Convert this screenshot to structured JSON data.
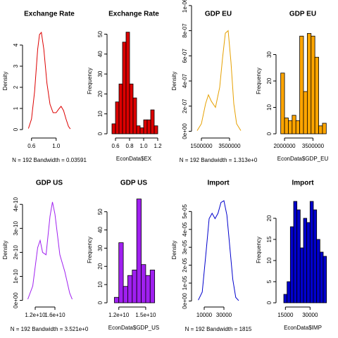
{
  "chart_data": [
    {
      "type": "line",
      "title": "Exchange Rate",
      "ylabel": "Density",
      "xlabel": "N = 192   Bandwidth = 0.03591",
      "color": "#dd0000",
      "x": [
        0.55,
        0.6,
        0.65,
        0.7,
        0.73,
        0.76,
        0.8,
        0.85,
        0.9,
        0.95,
        1.0,
        1.05,
        1.08,
        1.12,
        1.16,
        1.2,
        1.23
      ],
      "values": [
        0.05,
        0.5,
        1.8,
        3.8,
        4.5,
        4.6,
        3.8,
        2.2,
        1.2,
        0.8,
        0.8,
        1.0,
        1.1,
        0.9,
        0.5,
        0.15,
        0.03
      ],
      "xlim": [
        0.5,
        1.3
      ],
      "xticks": [
        0.6,
        {
          "value": 1,
          "label": "1.0"
        }
      ],
      "ylim": [
        -0.2,
        4.8
      ],
      "yticks": [
        0,
        1,
        2,
        3,
        4
      ]
    },
    {
      "type": "histogram",
      "title": "Exchange Rate",
      "ylabel": "Frequency",
      "xlabel": "EconData$EX",
      "color": "#dd0000",
      "bins": [
        0.55,
        0.6,
        0.65,
        0.7,
        0.75,
        0.8,
        0.85,
        0.9,
        0.95,
        1.0,
        1.05,
        1.1,
        1.15,
        1.2
      ],
      "values": [
        5,
        16,
        25,
        46,
        51,
        25,
        18,
        4,
        3,
        7,
        7,
        12,
        4
      ],
      "xlim": [
        0.52,
        1.22
      ],
      "xticks": [
        0.6,
        0.8,
        {
          "value": 1,
          "label": "1.0"
        },
        1.2
      ],
      "ylim": [
        0,
        53
      ],
      "yticks": [
        0,
        10,
        20,
        30,
        40,
        50
      ]
    },
    {
      "type": "line",
      "title": "GDP EU",
      "ylabel": "Density",
      "xlabel": "N = 192   Bandwidth = 1.313e+0",
      "color": "#e6a000",
      "x": [
        1200000,
        1500000,
        1800000,
        2000000,
        2200000,
        2500000,
        2800000,
        3000000,
        3200000,
        3400000,
        3600000,
        3800000,
        4000000,
        4300000
      ],
      "values": [
        5e-09,
        6e-08,
        2.2e-07,
        2.9e-07,
        2.4e-07,
        1.9e-07,
        3.5e-07,
        5.8e-07,
        7.8e-07,
        8e-07,
        5.5e-07,
        2.2e-07,
        6e-08,
        5e-09
      ],
      "xlim": [
        1000000,
        4500000
      ],
      "xticks": [
        1500000,
        3500000
      ],
      "ylim": [
        -2e-08,
        8.2e-07
      ],
      "yticks": [
        {
          "value": 0,
          "label": "0e+00"
        },
        {
          "value": 2e-07,
          "label": "2e-07"
        },
        {
          "value": 4e-07,
          "label": "4e-07"
        },
        {
          "value": 6e-07,
          "label": "6e-07"
        },
        {
          "value": 8e-07,
          "label": "8e-07"
        },
        {
          "value": 1e-06,
          "label": "1e-06"
        }
      ]
    },
    {
      "type": "histogram",
      "title": "GDP EU",
      "ylabel": "Frequency",
      "xlabel": "EconData$GDP_EU",
      "color": "#ffa500",
      "bins": [
        1800000,
        2000000,
        2200000,
        2400000,
        2600000,
        2800000,
        3000000,
        3200000,
        3400000,
        3600000,
        3800000,
        4000000,
        4200000
      ],
      "values": [
        23,
        6,
        5,
        7,
        5,
        37,
        16,
        38,
        37,
        29,
        3,
        4
      ],
      "xlim": [
        1700000,
        4300000
      ],
      "xticks": [
        2000000,
        3500000
      ],
      "ylim": [
        0,
        40
      ],
      "yticks": [
        0,
        10,
        20,
        30
      ]
    },
    {
      "type": "line",
      "title": "GDP US",
      "ylabel": "Density",
      "xlabel": "N = 192   Bandwidth = 3.521e+0",
      "color": "#a020f0",
      "x": [
        10500000000.0,
        11500000000.0,
        12500000000.0,
        13000000000.0,
        13500000000.0,
        14200000000.0,
        15000000000.0,
        15500000000.0,
        16000000000.0,
        17000000000.0,
        18000000000.0,
        19000000000.0,
        19500000000.0
      ],
      "values": [
        5e-12,
        6e-11,
        2.2e-10,
        2.5e-10,
        2e-10,
        1.9e-10,
        3.5e-10,
        4.1e-10,
        3.6e-10,
        1.9e-10,
        1.2e-10,
        3e-11,
        5e-12
      ],
      "xlim": [
        10000000000.0,
        20000000000.0
      ],
      "xticks": [
        {
          "value": 12000000000.0,
          "label": "1.2e+10"
        },
        {
          "value": 16000000000.0,
          "label": "1.6e+10"
        }
      ],
      "ylim": [
        -1e-11,
        4.3e-10
      ],
      "yticks": [
        {
          "value": 0,
          "label": "0e+00"
        },
        {
          "value": 1e-10,
          "label": "1e-10"
        },
        {
          "value": 2e-10,
          "label": "2e-10"
        },
        {
          "value": 3e-10,
          "label": "3e-10"
        },
        {
          "value": 4e-10,
          "label": "4e-10"
        }
      ]
    },
    {
      "type": "histogram",
      "title": "GDP US",
      "ylabel": "Frequency",
      "xlabel": "EconData$GDP_US",
      "color": "#a020f0",
      "bins": [
        11500000000.0,
        12000000000.0,
        12500000000.0,
        13000000000.0,
        13500000000.0,
        14000000000.0,
        14500000000.0,
        15000000000.0,
        15500000000.0,
        16000000000.0
      ],
      "values": [
        3,
        33,
        9,
        15,
        18,
        57,
        21,
        15,
        18
      ],
      "xlim": [
        11000000000.0,
        16500000000.0
      ],
      "xticks": [
        {
          "value": 12000000000.0,
          "label": "1.2e+10"
        },
        {
          "value": 15000000000.0,
          "label": "1.5e+10"
        }
      ],
      "ylim": [
        0,
        58
      ],
      "yticks": [
        0,
        10,
        20,
        30,
        40,
        50
      ]
    },
    {
      "type": "line",
      "title": "Import",
      "ylabel": "Density",
      "xlabel": "N = 192   Bandwidth = 1815",
      "color": "#0000cd",
      "x": [
        4000,
        8000,
        12000,
        15000,
        18000,
        21000,
        24000,
        27000,
        30000,
        33000,
        36000,
        39000,
        42000,
        45000
      ],
      "values": [
        5e-07,
        5e-06,
        2.8e-05,
        4.6e-05,
        4.9e-05,
        4.6e-05,
        4.9e-05,
        5.5e-05,
        5.6e-05,
        4.8e-05,
        3e-05,
        1.2e-05,
        2e-06,
        2e-07
      ],
      "xlim": [
        0,
        50000
      ],
      "xticks": [
        10000,
        30000
      ],
      "ylim": [
        -1e-06,
        5.8e-05
      ],
      "yticks": [
        {
          "value": 0,
          "label": "0e+00"
        },
        {
          "value": 1e-05,
          "label": "1e-05"
        },
        {
          "value": 2e-05,
          "label": "2e-05"
        },
        {
          "value": 3e-05,
          "label": "3e-05"
        },
        {
          "value": 4e-05,
          "label": "4e-05"
        },
        {
          "value": 5e-05,
          "label": "5e-05"
        }
      ]
    },
    {
      "type": "histogram",
      "title": "Import",
      "ylabel": "Frequency",
      "xlabel": "EconData$IMP",
      "color": "#0000cd",
      "bins": [
        14000,
        16000,
        18000,
        20000,
        22000,
        24000,
        26000,
        28000,
        30000,
        32000,
        34000,
        36000,
        38000,
        40000
      ],
      "values": [
        2,
        5,
        18,
        24,
        22,
        13,
        20,
        19,
        24,
        22,
        15,
        12,
        11
      ],
      "xlim": [
        11000,
        41000
      ],
      "xticks": [
        15000,
        30000
      ],
      "ylim": [
        0,
        25
      ],
      "yticks": [
        0,
        5,
        10,
        15,
        20
      ]
    }
  ]
}
